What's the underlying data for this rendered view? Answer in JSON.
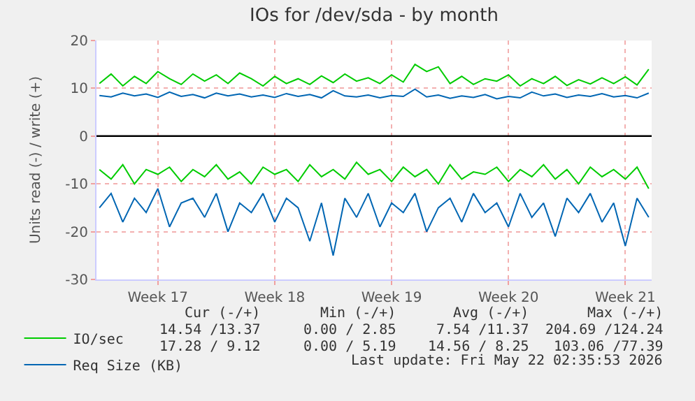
{
  "chart_data": {
    "type": "line",
    "title": "IOs for /dev/sda - by month",
    "ylabel": "Units read (-) / write (+)",
    "categories": [
      null,
      null,
      null,
      null,
      null,
      "Week 17",
      null,
      null,
      null,
      null,
      null,
      null,
      null,
      null,
      null,
      "Week 18",
      null,
      null,
      null,
      null,
      null,
      null,
      null,
      null,
      null,
      "Week 19",
      null,
      null,
      null,
      null,
      null,
      null,
      null,
      null,
      null,
      "Week 20",
      null,
      null,
      null,
      null,
      null,
      null,
      null,
      null,
      null,
      "Week 21",
      null,
      null
    ],
    "ylim": [
      -30,
      20
    ],
    "yticks": [
      -30,
      -20,
      -10,
      0,
      10,
      20
    ],
    "grid": true,
    "legend": "bottom left",
    "series": [
      {
        "name": "IO/sec",
        "color": "#00cc00",
        "values": [
          11,
          13,
          10.5,
          12.5,
          11,
          13.5,
          12,
          10.8,
          13,
          11.5,
          12.8,
          11,
          13.2,
          12,
          10.5,
          12.5,
          11,
          12,
          10.8,
          12.6,
          11.2,
          13,
          11.5,
          12.2,
          11,
          12.8,
          11.3,
          15,
          13.5,
          14.5,
          11,
          12.5,
          10.8,
          12,
          11.5,
          12.8,
          10.5,
          12,
          11,
          12.5,
          10.6,
          11.8,
          10.9,
          12.2,
          11,
          12.4,
          10.7,
          14
        ]
      },
      {
        "color": "#00cc00",
        "values": [
          -7,
          -9,
          -6,
          -10,
          -7,
          -8,
          -6.5,
          -9.5,
          -7,
          -8.5,
          -6,
          -9,
          -7.5,
          -10,
          -6.5,
          -8,
          -7,
          -9.5,
          -6,
          -8.5,
          -7,
          -9,
          -5.5,
          -8,
          -7,
          -9.5,
          -6.5,
          -8.5,
          -7,
          -10,
          -6,
          -9,
          -7.5,
          -8,
          -6.5,
          -9.5,
          -7,
          -8.5,
          -6,
          -9,
          -7,
          -10,
          -6.5,
          -8.5,
          -7,
          -9,
          -6.5,
          -11
        ]
      },
      {
        "name": "Req Size (KB)",
        "color": "#0066b3",
        "values": [
          8.5,
          8.2,
          9,
          8.4,
          8.8,
          8.1,
          9.2,
          8.3,
          8.7,
          8,
          9,
          8.4,
          8.8,
          8.2,
          8.6,
          8.1,
          8.9,
          8.3,
          8.7,
          8,
          9.5,
          8.4,
          8.2,
          8.6,
          8.0,
          8.5,
          8.3,
          9.8,
          8.2,
          8.6,
          7.9,
          8.4,
          8.1,
          8.7,
          7.8,
          8.3,
          8.0,
          9.2,
          8.4,
          8.8,
          8.1,
          8.6,
          8.3,
          8.9,
          8.2,
          8.5,
          8.0,
          9.0
        ]
      },
      {
        "color": "#0066b3",
        "values": [
          -15,
          -12,
          -18,
          -13,
          -16,
          -11,
          -19,
          -14,
          -13,
          -17,
          -12,
          -20,
          -14,
          -16,
          -12,
          -18,
          -13,
          -15,
          -22,
          -14,
          -25,
          -13,
          -17,
          -12,
          -19,
          -14,
          -16,
          -12,
          -20,
          -15,
          -13,
          -18,
          -12,
          -16,
          -14,
          -19,
          -12,
          -17,
          -14,
          -21,
          -13,
          -16,
          -12,
          -18,
          -14,
          -23,
          -13,
          -17
        ]
      }
    ],
    "ref_lines": [
      {
        "axis": "y",
        "value": 0,
        "color": "#000000"
      }
    ],
    "annotations": [
      "Cur (-/+)",
      "Min (-/+)",
      "Avg (-/+)",
      "Max (-/+)",
      "14.54 /13.37",
      "0.00 / 2.85",
      "7.54 /11.37",
      "204.69 /124.24",
      "17.28 / 9.12",
      "0.00 / 5.19",
      "14.56 / 8.25",
      "103.06 /77.39",
      "Last update: Fri May 22 02:35:53 2026"
    ]
  }
}
